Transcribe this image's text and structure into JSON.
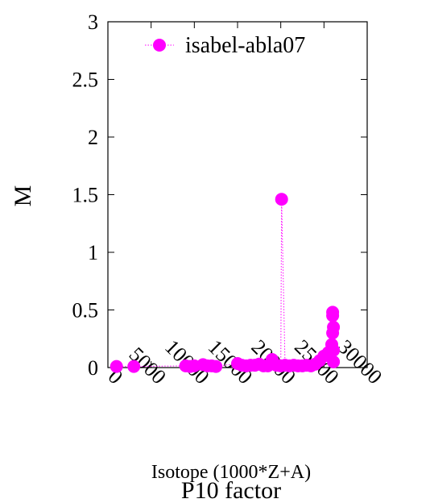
{
  "chart_data": {
    "type": "scatter",
    "title": "P10 factor",
    "xlabel": "Isotope (1000*Z+A)",
    "ylabel": "M",
    "xlim": [
      0,
      30000
    ],
    "ylim": [
      0,
      3
    ],
    "x_ticks": [
      "0",
      "5000",
      "10000",
      "15000",
      "20000",
      "25000",
      "30000"
    ],
    "y_ticks": [
      "0",
      "0.5",
      "1",
      "1.5",
      "2",
      "2.5",
      "3"
    ],
    "legend_position": "top-right",
    "grid": false,
    "series": [
      {
        "name": "isabel-abla07",
        "color": "#ff00ff",
        "style": "points connected by dotted line",
        "points": [
          [
            1000,
            0.01
          ],
          [
            3000,
            0.01
          ],
          [
            9000,
            0.015
          ],
          [
            9500,
            0.01
          ],
          [
            10000,
            0.015
          ],
          [
            11000,
            0.025
          ],
          [
            11500,
            0.015
          ],
          [
            12000,
            0.015
          ],
          [
            12500,
            0.01
          ],
          [
            15000,
            0.035
          ],
          [
            15500,
            0.02
          ],
          [
            16000,
            0.015
          ],
          [
            16500,
            0.02
          ],
          [
            17000,
            0.02
          ],
          [
            17500,
            0.03
          ],
          [
            18000,
            0.015
          ],
          [
            18500,
            0.015
          ],
          [
            19000,
            0.07
          ],
          [
            19500,
            0.02
          ],
          [
            20000,
            0.015
          ],
          [
            20100,
            1.46
          ],
          [
            20500,
            0.02
          ],
          [
            21000,
            0.015
          ],
          [
            21500,
            0.02
          ],
          [
            22000,
            0.015
          ],
          [
            22500,
            0.015
          ],
          [
            23000,
            0.02
          ],
          [
            23500,
            0.015
          ],
          [
            24000,
            0.03
          ],
          [
            24500,
            0.06
          ],
          [
            25000,
            0.1
          ],
          [
            25500,
            0.13
          ],
          [
            25900,
            0.2
          ],
          [
            26000,
            0.3
          ],
          [
            26000,
            0.45
          ],
          [
            26000,
            0.48
          ],
          [
            26100,
            0.35
          ],
          [
            26100,
            0.15
          ],
          [
            26100,
            0.05
          ]
        ]
      }
    ]
  }
}
